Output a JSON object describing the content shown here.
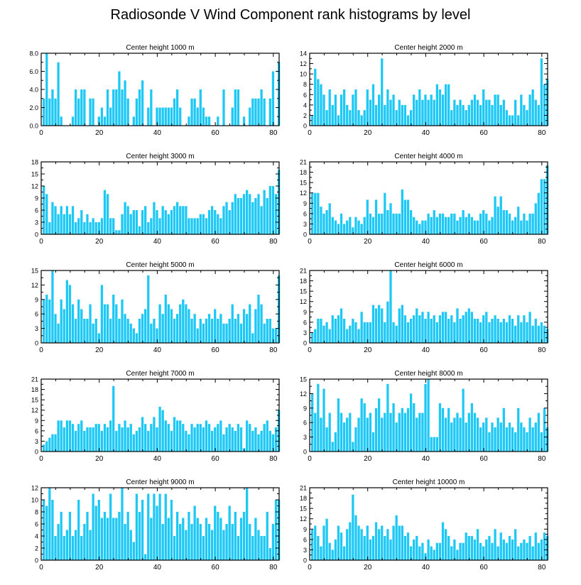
{
  "title": "Radiosonde V Wind Component rank histograms by level",
  "colors": {
    "bar": "#1ec8f5",
    "axis": "#000000",
    "background": "#ffffff"
  },
  "chart_data": [
    {
      "type": "bar",
      "title": "Center height 1000 m",
      "xlabel": "",
      "ylabel": "",
      "xlim": [
        0,
        82
      ],
      "ylim": [
        0,
        8
      ],
      "xticks": [
        0,
        20,
        40,
        60,
        80
      ],
      "yticks": [
        0,
        2,
        4,
        6,
        8
      ],
      "ytick_labels": [
        "0.0",
        "2.0",
        "4.0",
        "6.0",
        "8.0"
      ],
      "values": [
        3,
        8,
        3,
        4,
        3,
        7,
        1,
        0,
        0,
        0,
        1,
        4,
        3,
        4,
        4,
        0,
        3,
        3,
        0,
        1,
        2,
        1,
        4,
        2,
        4,
        4,
        6,
        4,
        5,
        3,
        0,
        1,
        3,
        4,
        5,
        0,
        2,
        4,
        0,
        2,
        2,
        2,
        2,
        2,
        2,
        3,
        4,
        2,
        0,
        0,
        1,
        3,
        3,
        2,
        4,
        2,
        1,
        1,
        0,
        0,
        1,
        0,
        4,
        0,
        0,
        2,
        4,
        4,
        0,
        1,
        0,
        2,
        3,
        3,
        3,
        4,
        3,
        0,
        3,
        6,
        0,
        7
      ]
    },
    {
      "type": "bar",
      "title": "Center height 2000 m",
      "xlabel": "",
      "ylabel": "",
      "xlim": [
        0,
        82
      ],
      "ylim": [
        0,
        14
      ],
      "xticks": [
        0,
        20,
        40,
        60,
        80
      ],
      "yticks": [
        0,
        2,
        4,
        6,
        8,
        10,
        12,
        14
      ],
      "ytick_labels": [
        "0",
        "2",
        "4",
        "6",
        "8",
        "10",
        "12",
        "14"
      ],
      "values": [
        2,
        11,
        9,
        8,
        6,
        3,
        7,
        4,
        6,
        2,
        6,
        7,
        4,
        3,
        6,
        7,
        3,
        2,
        3,
        7,
        5,
        8,
        4,
        6,
        13,
        4,
        7,
        5,
        6,
        3,
        5,
        4,
        4,
        2,
        3,
        6,
        5,
        7,
        5,
        6,
        5,
        6,
        5,
        8,
        7,
        6,
        8,
        8,
        3,
        5,
        4,
        5,
        4,
        3,
        4,
        5,
        6,
        5,
        4,
        7,
        5,
        5,
        4,
        6,
        6,
        4,
        5,
        3,
        2,
        2,
        5,
        2,
        6,
        4,
        3,
        6,
        7,
        5,
        4,
        13,
        8,
        9
      ]
    },
    {
      "type": "bar",
      "title": "Center height 3000 m",
      "xlabel": "",
      "ylabel": "",
      "xlim": [
        0,
        82
      ],
      "ylim": [
        0,
        18
      ],
      "xticks": [
        0,
        20,
        40,
        60,
        80
      ],
      "yticks": [
        0,
        3,
        6,
        9,
        12,
        15,
        18
      ],
      "ytick_labels": [
        "0",
        "3",
        "6",
        "9",
        "12",
        "15",
        "18"
      ],
      "values": [
        12,
        10,
        3,
        8,
        7,
        5,
        7,
        5,
        7,
        5,
        7,
        3,
        4,
        6,
        3,
        5,
        3,
        4,
        3,
        3,
        4,
        11,
        10,
        4,
        4,
        1,
        1,
        5,
        8,
        7,
        5,
        6,
        6,
        2,
        6,
        7,
        3,
        4,
        8,
        6,
        4,
        7,
        6,
        5,
        6,
        7,
        8,
        7,
        7,
        7,
        4,
        4,
        4,
        4,
        5,
        5,
        4,
        6,
        7,
        6,
        5,
        4,
        7,
        8,
        6,
        8,
        10,
        9,
        9,
        10,
        11,
        10,
        8,
        9,
        10,
        7,
        11,
        9,
        12,
        12,
        10,
        16
      ]
    },
    {
      "type": "bar",
      "title": "Center height 4000 m",
      "xlabel": "",
      "ylabel": "",
      "xlim": [
        0,
        82
      ],
      "ylim": [
        0,
        21
      ],
      "xticks": [
        0,
        20,
        40,
        60,
        80
      ],
      "yticks": [
        0,
        3,
        6,
        9,
        12,
        15,
        18,
        21
      ],
      "ytick_labels": [
        "0",
        "3",
        "6",
        "9",
        "12",
        "15",
        "18",
        "21"
      ],
      "values": [
        12,
        12,
        12,
        8,
        6,
        7,
        9,
        5,
        4,
        3,
        6,
        3,
        4,
        5,
        2,
        5,
        4,
        3,
        5,
        10,
        6,
        5,
        10,
        6,
        6,
        12,
        7,
        9,
        6,
        6,
        6,
        13,
        10,
        10,
        7,
        5,
        4,
        3,
        4,
        4,
        6,
        5,
        7,
        5,
        6,
        6,
        5,
        5,
        6,
        6,
        4,
        5,
        7,
        5,
        6,
        5,
        4,
        4,
        6,
        7,
        6,
        4,
        5,
        11,
        8,
        11,
        7,
        7,
        6,
        4,
        5,
        8,
        4,
        6,
        4,
        6,
        6,
        9,
        12,
        16,
        16,
        20
      ]
    },
    {
      "type": "bar",
      "title": "Center height 5000 m",
      "xlabel": "",
      "ylabel": "",
      "xlim": [
        0,
        82
      ],
      "ylim": [
        0,
        15
      ],
      "xticks": [
        0,
        20,
        40,
        60,
        80
      ],
      "yticks": [
        0,
        3,
        6,
        9,
        12,
        15
      ],
      "ytick_labels": [
        "0",
        "3",
        "6",
        "9",
        "12",
        "15"
      ],
      "values": [
        9,
        10,
        9,
        15,
        6,
        4,
        9,
        7,
        13,
        12,
        8,
        5,
        9,
        7,
        5,
        5,
        8,
        4,
        5,
        2,
        12,
        8,
        8,
        5,
        10,
        8,
        5,
        9,
        6,
        5,
        4,
        3,
        2,
        5,
        6,
        7,
        14,
        4,
        5,
        3,
        8,
        6,
        10,
        8,
        7,
        5,
        6,
        8,
        9,
        8,
        7,
        5,
        6,
        3,
        5,
        4,
        5,
        6,
        5,
        7,
        5,
        6,
        4,
        4,
        5,
        8,
        5,
        6,
        4,
        7,
        6,
        8,
        2,
        7,
        10,
        8,
        4,
        5,
        5,
        3,
        3,
        14
      ]
    },
    {
      "type": "bar",
      "title": "Center height 6000 m",
      "xlabel": "",
      "ylabel": "",
      "xlim": [
        0,
        82
      ],
      "ylim": [
        0,
        21
      ],
      "xticks": [
        0,
        20,
        40,
        60,
        80
      ],
      "yticks": [
        0,
        3,
        6,
        9,
        12,
        15,
        18,
        21
      ],
      "ytick_labels": [
        "0",
        "3",
        "6",
        "9",
        "12",
        "15",
        "18",
        "21"
      ],
      "values": [
        3,
        4,
        7,
        7,
        5,
        6,
        4,
        8,
        7,
        8,
        10,
        7,
        4,
        5,
        7,
        6,
        4,
        9,
        6,
        6,
        6,
        11,
        10,
        11,
        10,
        6,
        12,
        21,
        6,
        5,
        10,
        11,
        8,
        6,
        7,
        8,
        10,
        8,
        9,
        7,
        9,
        7,
        8,
        6,
        8,
        9,
        9,
        7,
        8,
        6,
        10,
        7,
        8,
        9,
        10,
        9,
        7,
        7,
        6,
        8,
        9,
        6,
        7,
        8,
        7,
        6,
        7,
        6,
        8,
        7,
        5,
        8,
        6,
        8,
        6,
        9,
        5,
        7,
        5,
        6,
        5,
        4
      ]
    },
    {
      "type": "bar",
      "title": "Center height 7000 m",
      "xlabel": "",
      "ylabel": "",
      "xlim": [
        0,
        82
      ],
      "ylim": [
        0,
        21
      ],
      "xticks": [
        0,
        20,
        40,
        60,
        80
      ],
      "yticks": [
        0,
        3,
        6,
        9,
        12,
        15,
        18,
        21
      ],
      "ytick_labels": [
        "0",
        "3",
        "6",
        "9",
        "12",
        "15",
        "18",
        "21"
      ],
      "values": [
        2,
        3,
        4,
        5,
        5,
        9,
        9,
        7,
        9,
        9,
        8,
        6,
        8,
        9,
        6,
        7,
        7,
        7,
        8,
        8,
        6,
        8,
        7,
        9,
        19,
        6,
        8,
        7,
        9,
        7,
        8,
        5,
        6,
        7,
        10,
        8,
        6,
        8,
        10,
        7,
        13,
        12,
        9,
        8,
        6,
        10,
        9,
        9,
        8,
        6,
        5,
        8,
        7,
        8,
        8,
        7,
        9,
        8,
        6,
        7,
        8,
        9,
        5,
        7,
        8,
        7,
        6,
        8,
        7,
        1,
        9,
        8,
        6,
        7,
        5,
        6,
        8,
        9,
        6,
        5,
        7,
        12
      ]
    },
    {
      "type": "bar",
      "title": "Center height 8000 m",
      "xlabel": "",
      "ylabel": "",
      "xlim": [
        0,
        82
      ],
      "ylim": [
        0,
        15
      ],
      "xticks": [
        0,
        20,
        40,
        60,
        80
      ],
      "yticks": [
        0,
        3,
        6,
        9,
        12,
        15
      ],
      "ytick_labels": [
        "0",
        "3",
        "6",
        "9",
        "12",
        "15"
      ],
      "values": [
        12,
        8,
        14,
        7,
        13,
        5,
        8,
        2,
        4,
        11,
        8,
        6,
        7,
        8,
        2,
        5,
        7,
        11,
        10,
        7,
        8,
        4,
        9,
        11,
        7,
        8,
        14,
        8,
        10,
        6,
        8,
        9,
        8,
        9,
        12,
        10,
        7,
        8,
        8,
        14,
        15,
        3,
        3,
        3,
        10,
        9,
        7,
        9,
        6,
        7,
        8,
        7,
        13,
        6,
        8,
        10,
        8,
        7,
        5,
        6,
        7,
        4,
        6,
        5,
        7,
        6,
        9,
        5,
        6,
        5,
        4,
        9,
        6,
        5,
        4,
        7,
        5,
        6,
        8,
        4,
        9,
        5
      ]
    },
    {
      "type": "bar",
      "title": "Center height 9000 m",
      "xlabel": "",
      "ylabel": "",
      "xlim": [
        0,
        82
      ],
      "ylim": [
        0,
        12
      ],
      "xticks": [
        0,
        20,
        40,
        60,
        80
      ],
      "yticks": [
        0,
        2,
        4,
        6,
        8,
        10,
        12
      ],
      "ytick_labels": [
        "0",
        "2",
        "4",
        "6",
        "8",
        "10",
        "12"
      ],
      "values": [
        10,
        9,
        12,
        10,
        4,
        6,
        8,
        4,
        5,
        8,
        4,
        5,
        10,
        4,
        6,
        8,
        5,
        11,
        9,
        10,
        7,
        8,
        7,
        11,
        7,
        7,
        8,
        12,
        6,
        8,
        5,
        3,
        11,
        8,
        10,
        1,
        11,
        7,
        11,
        9,
        11,
        6,
        11,
        7,
        10,
        4,
        8,
        6,
        7,
        5,
        8,
        6,
        9,
        7,
        6,
        4,
        7,
        6,
        5,
        9,
        8,
        7,
        5,
        6,
        9,
        6,
        8,
        4,
        7,
        8,
        12,
        6,
        4,
        7,
        5,
        4,
        4,
        8,
        2,
        6,
        10,
        10
      ]
    },
    {
      "type": "bar",
      "title": "Center height 10000 m",
      "xlabel": "",
      "ylabel": "",
      "xlim": [
        0,
        82
      ],
      "ylim": [
        0,
        21
      ],
      "xticks": [
        0,
        20,
        40,
        60,
        80
      ],
      "yticks": [
        0,
        3,
        6,
        9,
        12,
        15,
        18,
        21
      ],
      "ytick_labels": [
        "0",
        "3",
        "6",
        "9",
        "12",
        "15",
        "18",
        "21"
      ],
      "values": [
        9,
        10,
        7,
        4,
        10,
        12,
        5,
        3,
        6,
        10,
        8,
        4,
        9,
        11,
        19,
        13,
        10,
        9,
        7,
        10,
        6,
        7,
        11,
        9,
        10,
        7,
        9,
        6,
        10,
        13,
        10,
        10,
        7,
        8,
        4,
        6,
        7,
        4,
        5,
        2,
        6,
        4,
        3,
        5,
        5,
        11,
        9,
        7,
        4,
        6,
        3,
        5,
        5,
        8,
        7,
        7,
        6,
        9,
        5,
        4,
        6,
        7,
        5,
        9,
        4,
        8,
        6,
        5,
        7,
        6,
        9,
        4,
        5,
        6,
        5,
        7,
        4,
        8,
        5,
        6,
        8,
        7
      ]
    }
  ]
}
